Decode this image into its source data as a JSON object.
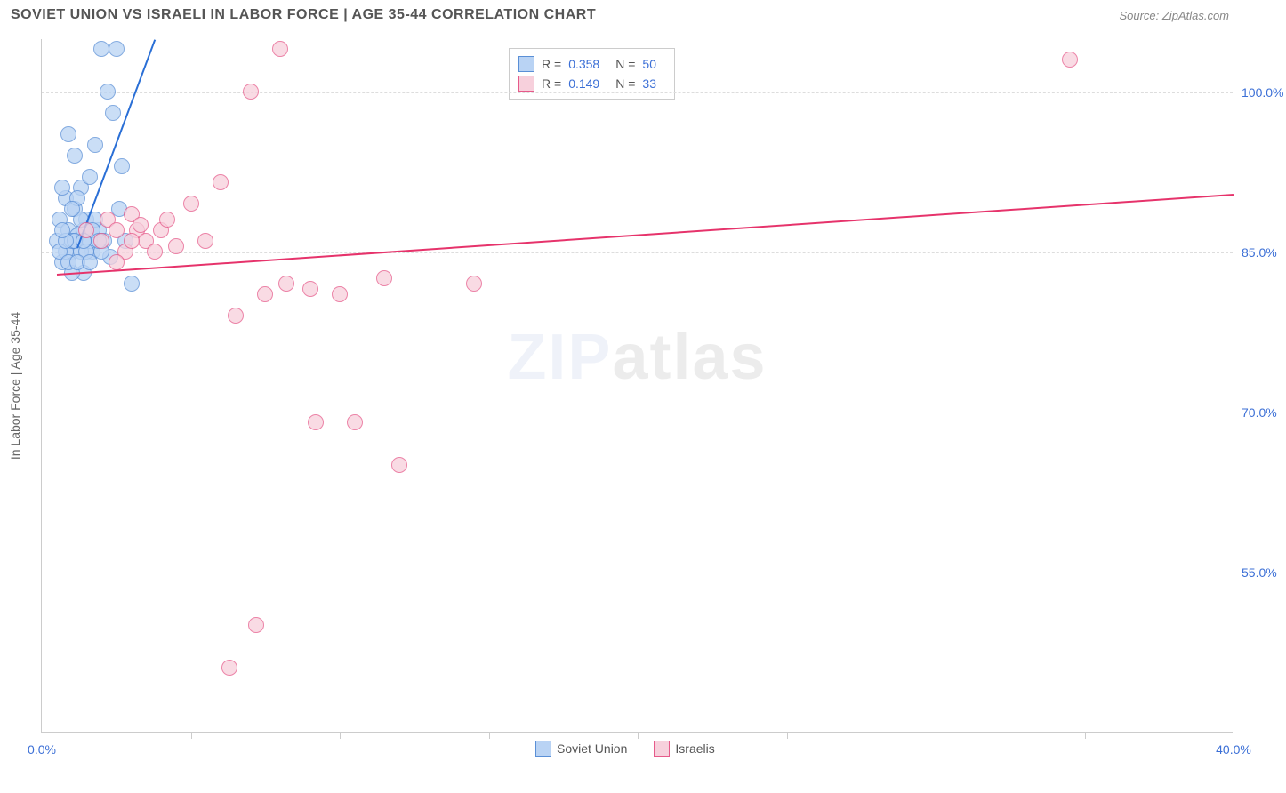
{
  "header": {
    "title": "SOVIET UNION VS ISRAELI IN LABOR FORCE | AGE 35-44 CORRELATION CHART",
    "source": "Source: ZipAtlas.com"
  },
  "chart": {
    "type": "scatter",
    "yaxis_title": "In Labor Force | Age 35-44",
    "xlim": [
      0,
      40
    ],
    "ylim": [
      40,
      105
    ],
    "yticks": [
      {
        "value": 55,
        "label": "55.0%"
      },
      {
        "value": 70,
        "label": "70.0%"
      },
      {
        "value": 85,
        "label": "85.0%"
      },
      {
        "value": 100,
        "label": "100.0%"
      }
    ],
    "xticks_minor": [
      5,
      10,
      15,
      20,
      25,
      30,
      35
    ],
    "xticks": [
      {
        "value": 0,
        "label": "0.0%"
      },
      {
        "value": 40,
        "label": "40.0%"
      }
    ],
    "grid_color": "#dddddd",
    "background_color": "#ffffff",
    "point_radius": 9,
    "series": [
      {
        "name": "Soviet Union",
        "fill": "#b9d3f4",
        "stroke": "#5a8fd6",
        "trend_color": "#2a6fd6",
        "trend": {
          "x1": 1.2,
          "y1": 85.5,
          "x2": 3.8,
          "y2": 105
        },
        "dashed_ext": {
          "x1": 1.2,
          "y1": 85.5,
          "x2": 4.5,
          "y2": 110
        },
        "points": [
          [
            0.5,
            86
          ],
          [
            0.6,
            88
          ],
          [
            0.7,
            84
          ],
          [
            0.8,
            90
          ],
          [
            0.9,
            87
          ],
          [
            1.0,
            85
          ],
          [
            1.1,
            89
          ],
          [
            1.2,
            86.5
          ],
          [
            1.3,
            91
          ],
          [
            1.4,
            83
          ],
          [
            1.5,
            88
          ],
          [
            1.6,
            92
          ],
          [
            1.7,
            85
          ],
          [
            1.8,
            95
          ],
          [
            1.9,
            87
          ],
          [
            2.0,
            104
          ],
          [
            2.1,
            86
          ],
          [
            2.2,
            100
          ],
          [
            2.3,
            84.5
          ],
          [
            2.4,
            98
          ],
          [
            2.5,
            104
          ],
          [
            2.6,
            89
          ],
          [
            2.7,
            93
          ],
          [
            2.8,
            86
          ],
          [
            3.0,
            82
          ],
          [
            1.0,
            83
          ],
          [
            1.1,
            94
          ],
          [
            1.3,
            85
          ],
          [
            0.9,
            96
          ],
          [
            0.8,
            85
          ],
          [
            1.6,
            86
          ],
          [
            1.8,
            88
          ],
          [
            2.0,
            85
          ],
          [
            0.7,
            91
          ],
          [
            0.6,
            85
          ],
          [
            1.4,
            87
          ],
          [
            1.2,
            90
          ],
          [
            1.0,
            86
          ],
          [
            1.5,
            85
          ],
          [
            1.7,
            87
          ],
          [
            0.9,
            84
          ],
          [
            1.1,
            86
          ],
          [
            1.3,
            88
          ],
          [
            0.8,
            86
          ],
          [
            1.0,
            89
          ],
          [
            1.2,
            84
          ],
          [
            1.4,
            86
          ],
          [
            0.7,
            87
          ],
          [
            1.6,
            84
          ],
          [
            1.9,
            86
          ]
        ]
      },
      {
        "name": "Israelis",
        "fill": "#f7d0dc",
        "stroke": "#e65a8a",
        "trend_color": "#e6336b",
        "trend": {
          "x1": 0.5,
          "y1": 83,
          "x2": 40,
          "y2": 90.5
        },
        "points": [
          [
            1.5,
            87
          ],
          [
            2.0,
            86
          ],
          [
            2.2,
            88
          ],
          [
            2.5,
            87
          ],
          [
            2.8,
            85
          ],
          [
            3.0,
            88.5
          ],
          [
            3.2,
            87
          ],
          [
            3.5,
            86
          ],
          [
            4.0,
            87
          ],
          [
            4.5,
            85.5
          ],
          [
            5.0,
            89.5
          ],
          [
            5.5,
            86
          ],
          [
            6.0,
            91.5
          ],
          [
            6.5,
            79
          ],
          [
            7.0,
            100
          ],
          [
            7.5,
            81
          ],
          [
            8.0,
            104
          ],
          [
            8.2,
            82
          ],
          [
            9.0,
            81.5
          ],
          [
            10.0,
            81
          ],
          [
            10.5,
            69
          ],
          [
            11.5,
            82.5
          ],
          [
            12.0,
            65
          ],
          [
            7.2,
            50
          ],
          [
            6.3,
            46
          ],
          [
            9.2,
            69
          ],
          [
            14.5,
            82
          ],
          [
            34.5,
            103
          ],
          [
            2.5,
            84
          ],
          [
            3.0,
            86
          ],
          [
            3.8,
            85
          ],
          [
            4.2,
            88
          ],
          [
            3.3,
            87.5
          ]
        ]
      }
    ],
    "legend_top": [
      {
        "swatch_fill": "#b9d3f4",
        "swatch_stroke": "#5a8fd6",
        "r": "0.358",
        "n": "50"
      },
      {
        "swatch_fill": "#f7d0dc",
        "swatch_stroke": "#e65a8a",
        "r": "0.149",
        "n": "33"
      }
    ],
    "legend_bottom": [
      {
        "swatch_fill": "#b9d3f4",
        "swatch_stroke": "#5a8fd6",
        "label": "Soviet Union"
      },
      {
        "swatch_fill": "#f7d0dc",
        "swatch_stroke": "#e65a8a",
        "label": "Israelis"
      }
    ],
    "watermark": {
      "part1": "ZIP",
      "part2": "atlas"
    }
  }
}
